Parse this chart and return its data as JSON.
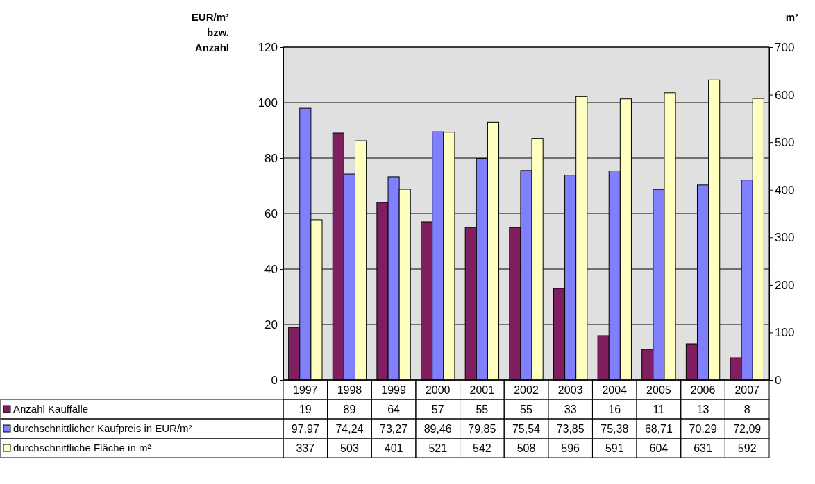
{
  "chart_data": {
    "type": "bar",
    "ylabel": "EUR/m² bzw. Anzahl",
    "y2label": "m²",
    "categories": [
      "1997",
      "1998",
      "1999",
      "2000",
      "2001",
      "2002",
      "2003",
      "2004",
      "2005",
      "2006",
      "2007"
    ],
    "series": [
      {
        "name": "Anzahl Kauffälle",
        "color": "#7f1f5f",
        "values": [
          19,
          89,
          64,
          57,
          55,
          55,
          33,
          16,
          11,
          13,
          8
        ],
        "value_labels": [
          "19",
          "89",
          "64",
          "57",
          "55",
          "55",
          "33",
          "16",
          "11",
          "13",
          "8"
        ]
      },
      {
        "name": "durchschnittlicher Kaufpreis in EUR/m²",
        "color": "#8080ff",
        "values": [
          97.97,
          74.24,
          73.27,
          89.46,
          79.85,
          75.54,
          73.85,
          75.38,
          68.71,
          70.29,
          72.09
        ],
        "value_labels": [
          "97,97",
          "74,24",
          "73,27",
          "89,46",
          "79,85",
          "75,54",
          "73,85",
          "75,38",
          "68,71",
          "70,29",
          "72,09"
        ]
      },
      {
        "name": "durchschnittliche Fläche in m²",
        "color": "#ffffc0",
        "axis": "y2",
        "values": [
          337,
          503,
          401,
          521,
          542,
          508,
          596,
          591,
          604,
          631,
          592
        ],
        "value_labels": [
          "337",
          "503",
          "401",
          "521",
          "542",
          "508",
          "596",
          "591",
          "604",
          "631",
          "592"
        ]
      }
    ],
    "ylim": [
      0,
      120
    ],
    "yticks": [
      0,
      20,
      40,
      60,
      80,
      100,
      120
    ],
    "y2lim": [
      0,
      700
    ],
    "y2ticks": [
      0,
      100,
      200,
      300,
      400,
      500,
      600,
      700
    ],
    "grid": "y",
    "legend": "bottom"
  }
}
